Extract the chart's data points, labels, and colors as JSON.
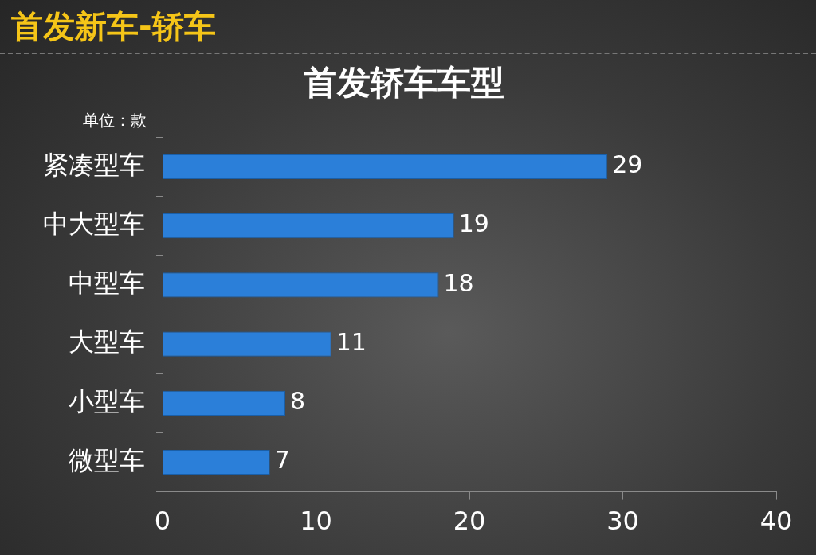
{
  "chart_data": {
    "type": "bar",
    "orientation": "horizontal",
    "title": "首发新车-轿车",
    "subtitle": "首发轿车车型",
    "annotations": [
      "单位：款"
    ],
    "categories": [
      "紧凑型车",
      "中大型车",
      "中型车",
      "大型车",
      "小型车",
      "微型车"
    ],
    "values": [
      29,
      19,
      18,
      11,
      8,
      7
    ],
    "color": "#2b7fd9",
    "xlim": [
      0,
      40
    ],
    "xticks": [
      0,
      10,
      20,
      30,
      40
    ],
    "grid": false,
    "legend": false,
    "data_labels": true
  }
}
